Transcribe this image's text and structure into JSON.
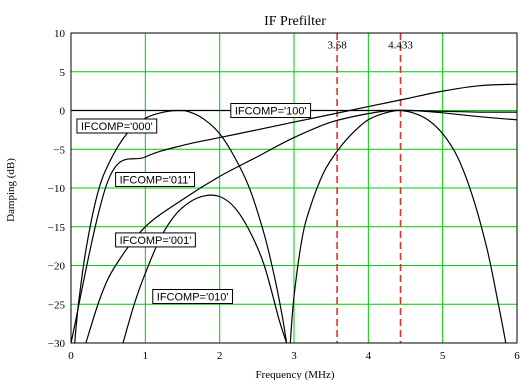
{
  "chart_data": {
    "type": "line",
    "title": "IF Prefilter",
    "xlabel": "Frequency (MHz)",
    "ylabel": "Damping (dB)",
    "xlim": [
      0,
      6
    ],
    "ylim": [
      -30,
      10
    ],
    "xticks": [
      0,
      1,
      2,
      3,
      4,
      5,
      6
    ],
    "yticks": [
      10,
      5,
      0,
      -5,
      -10,
      -15,
      -20,
      -25,
      -30
    ],
    "grid": true,
    "colors": {
      "grid": "#00cc00",
      "curve": "#000000",
      "marker": "#e03030"
    },
    "markers": [
      {
        "x": 3.58,
        "label": "3.58"
      },
      {
        "x": 4.433,
        "label": "4.433"
      }
    ],
    "series": [
      {
        "name": "IFCOMP='100'",
        "x": [
          0,
          1,
          2,
          3,
          3.5,
          4,
          4.5,
          5,
          5.5,
          6
        ],
        "y": [
          0,
          0,
          0,
          0,
          0,
          0,
          0,
          -0.1,
          -0.2,
          -0.2
        ]
      },
      {
        "name": "IFCOMP='000'",
        "x": [
          0.05,
          0.1,
          0.2,
          0.35,
          0.5,
          0.75,
          1,
          1.25,
          1.45,
          1.6,
          1.8,
          2,
          2.2,
          2.4,
          2.6,
          2.75,
          2.85,
          2.9
        ],
        "y": [
          -30,
          -25,
          -18,
          -11,
          -7,
          -3,
          -1,
          -0.2,
          0,
          -0.2,
          -1.2,
          -3,
          -6,
          -10,
          -16,
          -22,
          -27,
          -30
        ]
      },
      {
        "name": "IFCOMP='011'",
        "x": [
          0,
          0.5,
          1,
          1.5,
          2,
          2.5,
          3,
          3.5,
          4,
          4.5,
          5,
          5.5,
          6
        ],
        "y": [
          -30,
          -9,
          -6,
          -4.5,
          -3.5,
          -2.5,
          -1.5,
          -0.5,
          0.5,
          1.5,
          2.5,
          3.2,
          3.4
        ]
      },
      {
        "name": "IFCOMP='001'",
        "x": [
          0.2,
          0.4,
          0.6,
          1,
          1.5,
          2,
          2.5,
          3,
          3.5,
          4,
          4.3,
          4.6,
          5,
          5.5,
          6
        ],
        "y": [
          -30,
          -24,
          -20,
          -15,
          -11.5,
          -8.5,
          -6,
          -3.5,
          -1.5,
          -0.4,
          0,
          0,
          -0.3,
          -0.8,
          -1.2
        ]
      },
      {
        "name": "IFCOMP='010'",
        "x": [
          0.7,
          0.85,
          1,
          1.2,
          1.4,
          1.6,
          1.8,
          2,
          2.2,
          2.4,
          2.6,
          2.8,
          2.9
        ],
        "y": [
          -30,
          -25,
          -21,
          -16.5,
          -13.5,
          -11.8,
          -11,
          -11.1,
          -12.5,
          -15.5,
          -20,
          -27,
          -30
        ]
      },
      {
        "name": "",
        "x": [
          2.95,
          3,
          3.1,
          3.2,
          3.4,
          3.6,
          3.8,
          4,
          4.2,
          4.4,
          4.6,
          4.8,
          5,
          5.2,
          5.4,
          5.6,
          5.75,
          5.85
        ],
        "y": [
          -30,
          -24,
          -17,
          -13,
          -8,
          -5,
          -2.8,
          -1.2,
          -0.4,
          0,
          -0.3,
          -1.2,
          -3,
          -6,
          -11,
          -18,
          -25,
          -30
        ]
      }
    ],
    "labels": [
      {
        "text": "IFCOMP='100'",
        "x": 2.15,
        "y": 0
      },
      {
        "text": "IFCOMP='000'",
        "x": 0.08,
        "y": -2
      },
      {
        "text": "IFCOMP='011'",
        "x": 0.6,
        "y": -8.9
      },
      {
        "text": "IFCOMP='001'",
        "x": 0.6,
        "y": -16.7
      },
      {
        "text": "IFCOMP='010'",
        "x": 1.1,
        "y": -24
      }
    ]
  }
}
